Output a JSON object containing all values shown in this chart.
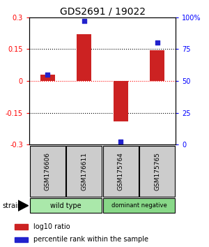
{
  "title": "GDS2691 / 19022",
  "samples": [
    "GSM176606",
    "GSM176611",
    "GSM175764",
    "GSM175765"
  ],
  "log10_ratio": [
    0.03,
    0.22,
    -0.19,
    0.145
  ],
  "percentile_rank": [
    55,
    97,
    2,
    80
  ],
  "groups": [
    {
      "name": "wild type",
      "samples": [
        0,
        1
      ],
      "color": "#aae8aa"
    },
    {
      "name": "dominant negative",
      "samples": [
        2,
        3
      ],
      "color": "#88d888"
    }
  ],
  "ylim": [
    -0.3,
    0.3
  ],
  "yticks_left": [
    -0.3,
    -0.15,
    0.0,
    0.15,
    0.3
  ],
  "yticks_right": [
    0,
    25,
    50,
    75,
    100
  ],
  "ytick_labels_left": [
    "-0.3",
    "-0.15",
    "0",
    "0.15",
    "0.3"
  ],
  "ytick_labels_right": [
    "0",
    "25",
    "50",
    "75",
    "100%"
  ],
  "bar_color": "#cc2222",
  "dot_color": "#2222cc",
  "bar_width": 0.4,
  "strain_label": "strain",
  "legend_red_label": "log10 ratio",
  "legend_blue_label": "percentile rank within the sample",
  "sample_box_color": "#cccccc",
  "title_fontsize": 10,
  "tick_fontsize": 7
}
